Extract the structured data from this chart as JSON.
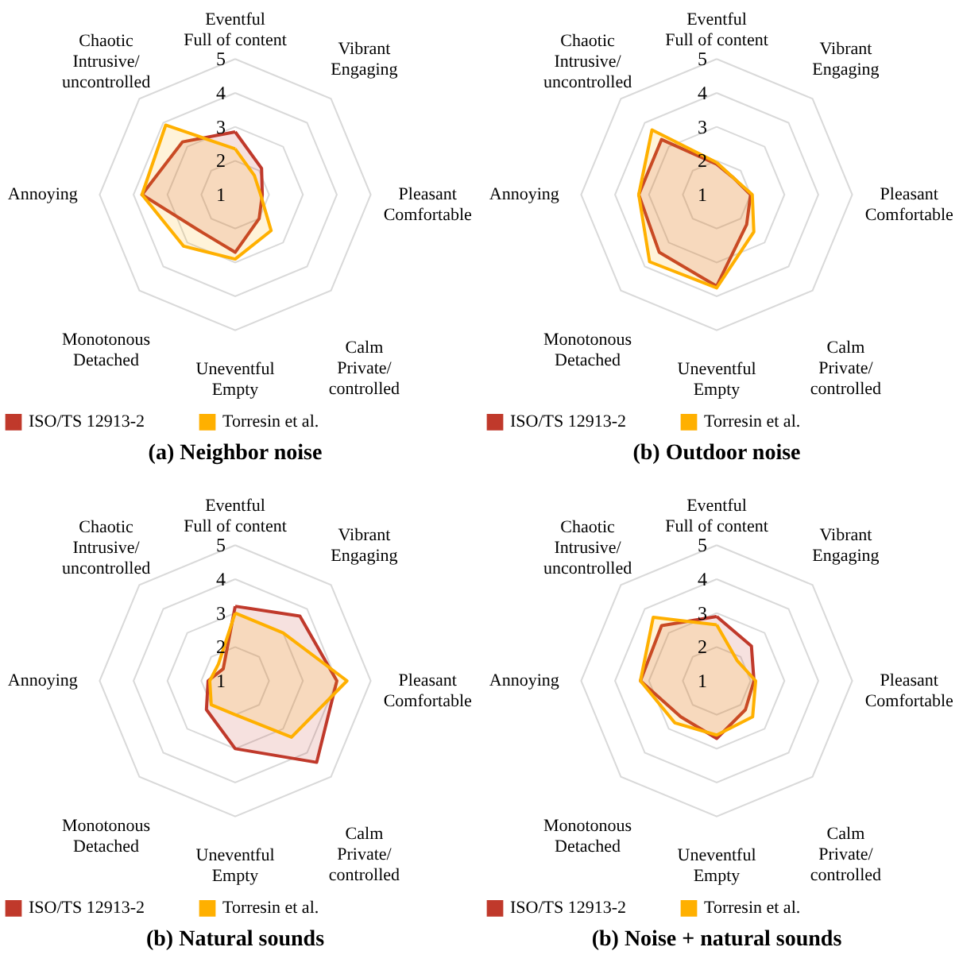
{
  "chart_data": [
    {
      "type": "radar",
      "title": "(a) Neighbor noise",
      "categories": [
        "Eventful\nFull of content",
        "Vibrant\nEngaging",
        "Pleasant\nComfortable",
        "Calm\nPrivate/\ncontrolled",
        "Uneventful\nEmpty",
        "Monotonous\nDetached",
        "Annoying",
        "Chaotic\nIntrusive/\nuncontrolled"
      ],
      "ylim": [
        1,
        5
      ],
      "yticks": [
        1,
        2,
        3,
        4,
        5
      ],
      "grid": true,
      "legend": "bottom",
      "series": [
        {
          "name": "ISO/TS 12913-2",
          "color": "#c0392b",
          "values": [
            2.85,
            2.1,
            1.8,
            2.0,
            2.7,
            2.5,
            3.75,
            3.2
          ]
        },
        {
          "name": "Torresin et al.",
          "color": "#ffb000",
          "values": [
            2.35,
            1.8,
            1.75,
            2.5,
            2.9,
            3.15,
            3.75,
            3.9
          ]
        }
      ]
    },
    {
      "type": "radar",
      "title": "(b) Outdoor noise",
      "categories": [
        "Eventful\nFull of content",
        "Vibrant\nEngaging",
        "Pleasant\nComfortable",
        "Calm\nPrivate/\ncontrolled",
        "Uneventful\nEmpty",
        "Monotonous\nDetached",
        "Annoying",
        "Chaotic\nIntrusive/\nuncontrolled"
      ],
      "ylim": [
        1,
        5
      ],
      "yticks": [
        1,
        2,
        3,
        4,
        5
      ],
      "grid": true,
      "legend": "bottom",
      "series": [
        {
          "name": "ISO/TS 12913-2",
          "color": "#c0392b",
          "values": [
            1.9,
            1.7,
            2.0,
            2.25,
            3.7,
            3.4,
            3.3,
            3.3
          ]
        },
        {
          "name": "Torresin et al.",
          "color": "#ffb000",
          "values": [
            1.95,
            1.7,
            2.05,
            2.55,
            3.75,
            3.8,
            3.3,
            3.7
          ]
        }
      ]
    },
    {
      "type": "radar",
      "title": "(b) Natural sounds",
      "categories": [
        "Eventful\nFull of content",
        "Vibrant\nEngaging",
        "Pleasant\nComfortable",
        "Calm\nPrivate/\ncontrolled",
        "Uneventful\nEmpty",
        "Monotonous\nDetached",
        "Annoying",
        "Chaotic\nIntrusive/\nuncontrolled"
      ],
      "ylim": [
        1,
        5
      ],
      "yticks": [
        1,
        2,
        3,
        4,
        5
      ],
      "grid": true,
      "legend": "bottom",
      "series": [
        {
          "name": "ISO/TS 12913-2",
          "color": "#c0392b",
          "values": [
            3.2,
            3.7,
            4.0,
            4.4,
            3.0,
            2.2,
            1.8,
            1.5
          ]
        },
        {
          "name": "Torresin et al.",
          "color": "#ffb000",
          "values": [
            3.0,
            3.0,
            4.3,
            3.35,
            2.0,
            2.0,
            1.75,
            1.7
          ]
        }
      ]
    },
    {
      "type": "radar",
      "title": "(b) Noise + natural sounds",
      "categories": [
        "Eventful\nFull of content",
        "Vibrant\nEngaging",
        "Pleasant\nComfortable",
        "Calm\nPrivate/\ncontrolled",
        "Uneventful\nEmpty",
        "Monotonous\nDetached",
        "Annoying",
        "Chaotic\nIntrusive/\nuncontrolled"
      ],
      "ylim": [
        1,
        5
      ],
      "yticks": [
        1,
        2,
        3,
        4,
        5
      ],
      "grid": true,
      "legend": "bottom",
      "series": [
        {
          "name": "ISO/TS 12913-2",
          "color": "#c0392b",
          "values": [
            2.9,
            2.45,
            2.1,
            2.2,
            2.7,
            2.5,
            3.25,
            3.3
          ]
        },
        {
          "name": "Torresin et al.",
          "color": "#ffb000",
          "values": [
            2.65,
            1.85,
            2.15,
            2.5,
            2.6,
            2.75,
            3.25,
            3.65
          ]
        }
      ]
    }
  ]
}
